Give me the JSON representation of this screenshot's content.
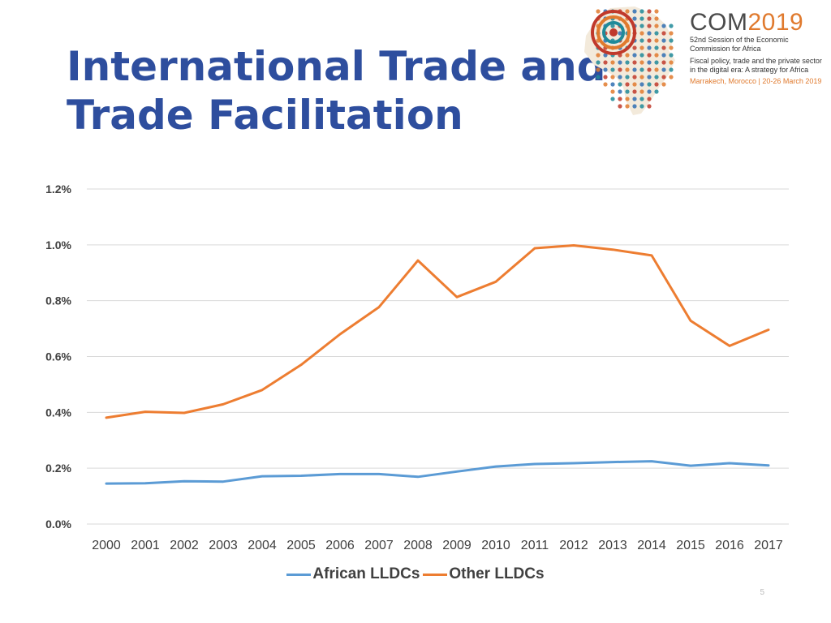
{
  "slide": {
    "title_line1": "International Trade and",
    "title_line2": "Trade Facilitation",
    "page_number": "5"
  },
  "logo": {
    "brand_com": "COM",
    "brand_year": "2019",
    "line1": "52nd Session of the Economic",
    "line2": "Commission for Africa",
    "line3": "Fiscal policy, trade and the private sector",
    "line4": "in the digital era: A strategy for Africa",
    "line5": "Marrakech, Morocco | 20-26 March 2019",
    "colors": {
      "blue": "#2F6FB3",
      "orange": "#E07A2E",
      "red": "#C0392B",
      "teal": "#1F8A99"
    }
  },
  "chart_data": {
    "type": "line",
    "title": "",
    "xlabel": "",
    "ylabel": "",
    "x": [
      "2000",
      "2001",
      "2002",
      "2003",
      "2004",
      "2005",
      "2006",
      "2007",
      "2008",
      "2009",
      "2010",
      "2011",
      "2012",
      "2013",
      "2014",
      "2015",
      "2016",
      "2017"
    ],
    "yticks": [
      "0.0%",
      "0.2%",
      "0.4%",
      "0.6%",
      "0.8%",
      "1.0%",
      "1.2%"
    ],
    "ylim": [
      0,
      1.2
    ],
    "grid": true,
    "legend_position": "bottom",
    "series": [
      {
        "name": "African LLDCs",
        "color": "#5B9BD5",
        "values": [
          0.145,
          0.146,
          0.153,
          0.152,
          0.171,
          0.173,
          0.179,
          0.179,
          0.169,
          0.188,
          0.206,
          0.215,
          0.218,
          0.222,
          0.225,
          0.209,
          0.218,
          0.21
        ]
      },
      {
        "name": "Other LLDCs",
        "color": "#ED7D31",
        "values": [
          0.381,
          0.402,
          0.398,
          0.429,
          0.48,
          0.57,
          0.68,
          0.777,
          0.944,
          0.813,
          0.868,
          0.988,
          0.998,
          0.983,
          0.962,
          0.728,
          0.638,
          0.696
        ]
      }
    ]
  }
}
